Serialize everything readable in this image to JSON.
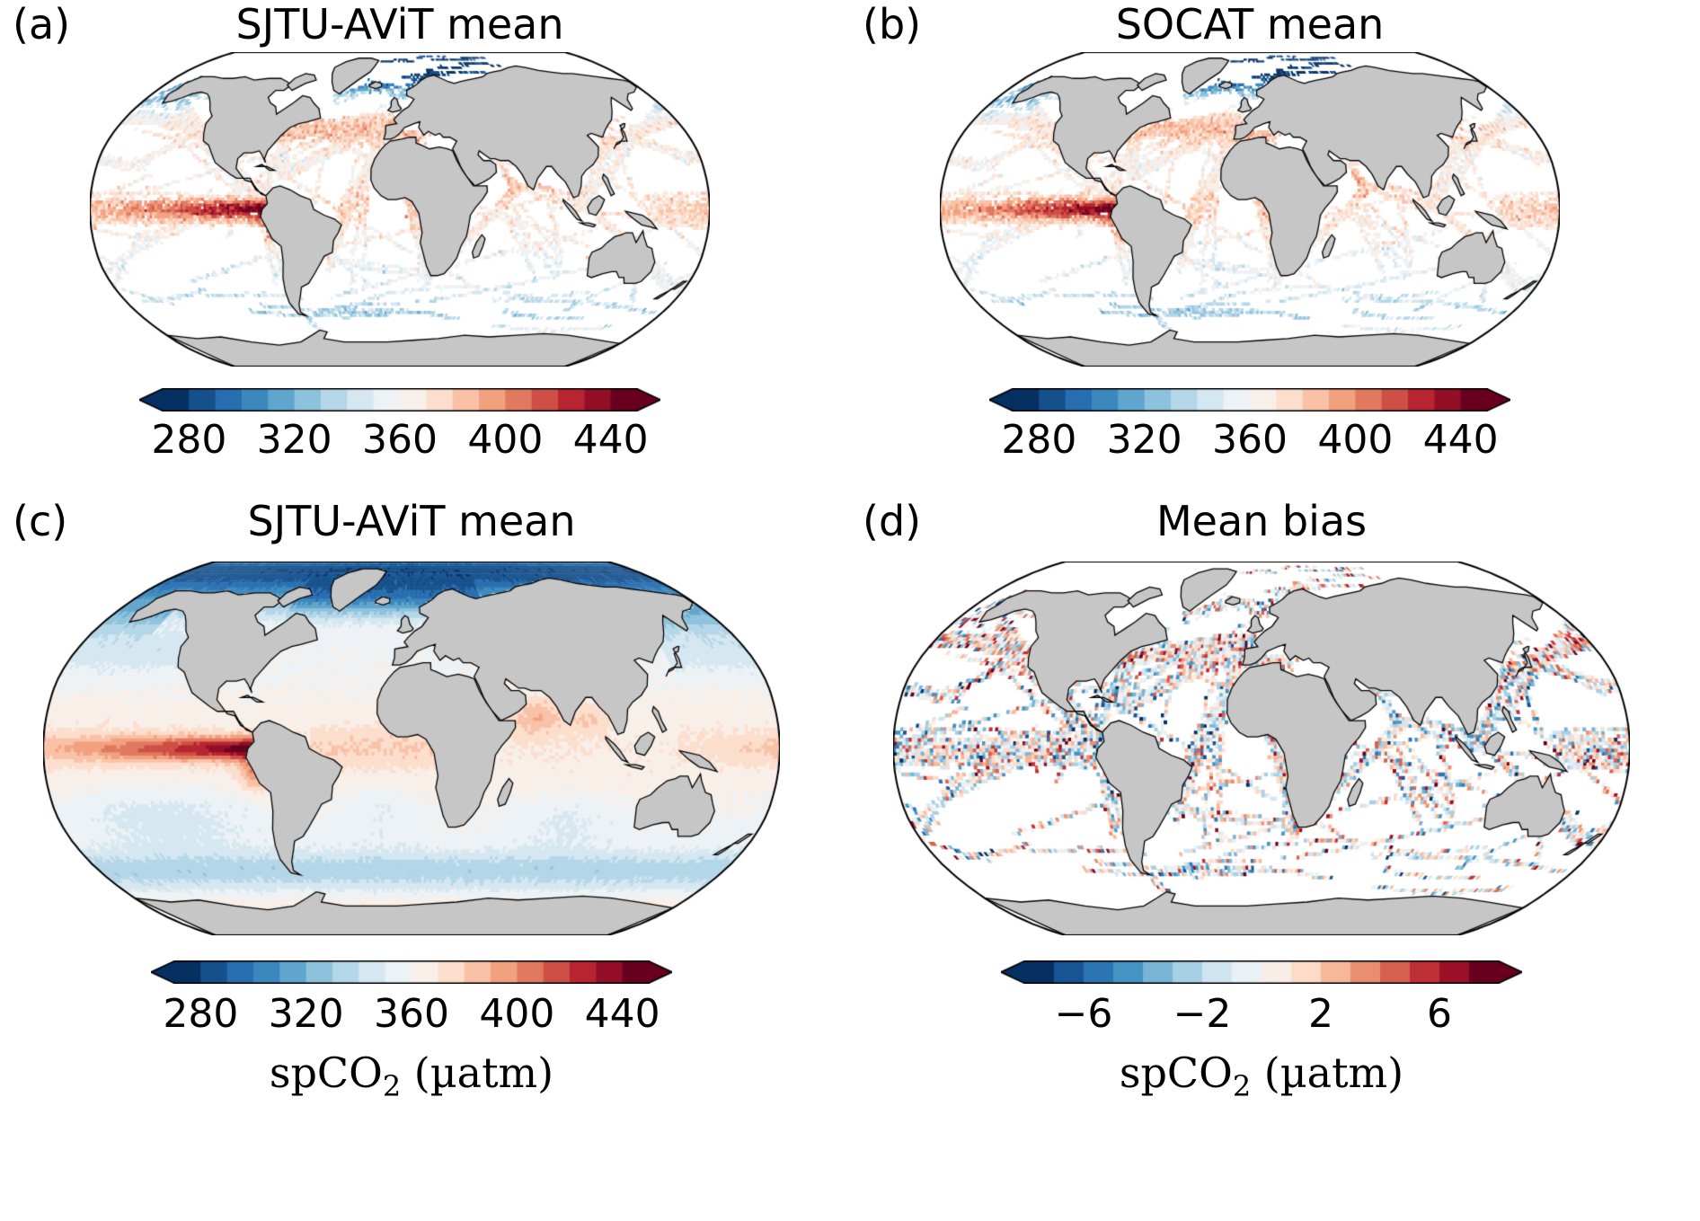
{
  "figure": {
    "panels": [
      {
        "id": "a",
        "label": "(a)",
        "title": "SJTU-AViT mean",
        "map_kind": "sampled-mean",
        "colorbar": {
          "vmin": 270,
          "vmax": 450,
          "n_segments": 18,
          "tick_values": [
            280,
            320,
            360,
            400,
            440
          ],
          "tick_labels": [
            "280",
            "320",
            "360",
            "400",
            "440"
          ]
        }
      },
      {
        "id": "b",
        "label": "(b)",
        "title": "SOCAT mean",
        "map_kind": "sampled-mean",
        "colorbar": {
          "vmin": 270,
          "vmax": 450,
          "n_segments": 18,
          "tick_values": [
            280,
            320,
            360,
            400,
            440
          ],
          "tick_labels": [
            "280",
            "320",
            "360",
            "400",
            "440"
          ]
        }
      },
      {
        "id": "c",
        "label": "(c)",
        "title": "SJTU-AViT mean",
        "map_kind": "full-mean",
        "colorbar": {
          "vmin": 270,
          "vmax": 450,
          "n_segments": 18,
          "tick_values": [
            280,
            320,
            360,
            400,
            440
          ],
          "tick_labels": [
            "280",
            "320",
            "360",
            "400",
            "440"
          ]
        },
        "xlabel": {
          "main": "spCO",
          "sub": "2",
          "unit": " (µatm)"
        }
      },
      {
        "id": "d",
        "label": "(d)",
        "title": "Mean bias",
        "map_kind": "bias",
        "colorbar": {
          "vmin": -8,
          "vmax": 8,
          "n_segments": 16,
          "tick_values": [
            -6,
            -2,
            2,
            6
          ],
          "tick_labels": [
            "−6",
            "−2",
            "2",
            "6"
          ]
        },
        "xlabel": {
          "main": "spCO",
          "sub": "2",
          "unit": " (µatm)"
        }
      }
    ]
  },
  "colors": {
    "background": "#ffffff",
    "land": "#c6c6c6",
    "coastline": "#000000",
    "text": "#000000",
    "colormap_rdbu_r": [
      "#053061",
      "#2166ac",
      "#4393c3",
      "#92c5de",
      "#d1e5f0",
      "#f7f7f7",
      "#fddbc7",
      "#f4a582",
      "#d6604d",
      "#b2182b",
      "#67001f"
    ]
  },
  "chart_data": [
    {
      "type": "heatmap",
      "panel": "a",
      "title": "SJTU-AViT mean",
      "projection": "Robinson world map",
      "variable": "spCO2",
      "units": "µatm",
      "sampling": "model mean sampled only in grid cells along SOCAT ship tracks (sparse criss-crossing lines, blank ocean elsewhere)",
      "colormap": "RdBu_r, discrete ~18 bins with pointed over/under extensions",
      "vmin": 270,
      "vmax": 450,
      "colorbar_ticks": [
        280,
        320,
        360,
        400,
        440
      ],
      "features": [
        {
          "region": "equatorial Pacific 160E-80W, 8S-5N",
          "value_range": [
            410,
            450
          ],
          "appearance": "dense dark-red band"
        },
        {
          "region": "North Atlantic and North Pacific shipping lanes 30-50N",
          "value_range": [
            370,
            410
          ],
          "appearance": "red/orange criss-crossing tracks"
        },
        {
          "region": "subpolar North Atlantic, Nordic Seas, Arctic",
          "value_range": [
            280,
            320
          ],
          "appearance": "dark blue tracks"
        },
        {
          "region": "Southern Hemisphere gyres 20-50S",
          "value_range": [
            330,
            365
          ],
          "appearance": "sparse pale blue and pink tracks"
        },
        {
          "region": "northern Indian Ocean / Arabian Sea",
          "value_range": [
            370,
            400
          ],
          "appearance": "scattered light red cells"
        }
      ]
    },
    {
      "type": "heatmap",
      "panel": "b",
      "title": "SOCAT mean",
      "projection": "Robinson world map",
      "variable": "spCO2",
      "units": "µatm",
      "sampling": "SOCAT observed mean on the same ship-track cells as panel (a); coverage and values nearly identical to panel (a)",
      "colormap": "RdBu_r, discrete ~18 bins with pointed over/under extensions",
      "vmin": 270,
      "vmax": 450,
      "colorbar_ticks": [
        280,
        320,
        360,
        400,
        440
      ],
      "features": [
        {
          "region": "equatorial Pacific",
          "value_range": [
            410,
            450
          ],
          "appearance": "dense dark-red band"
        },
        {
          "region": "northern mid-latitude shipping lanes",
          "value_range": [
            370,
            410
          ],
          "appearance": "red/orange tracks"
        },
        {
          "region": "high-latitude North Atlantic and Arctic",
          "value_range": [
            280,
            320
          ],
          "appearance": "dark blue tracks"
        },
        {
          "region": "Southern Hemisphere",
          "value_range": [
            330,
            365
          ],
          "appearance": "sparse pale tracks"
        }
      ]
    },
    {
      "type": "heatmap",
      "panel": "c",
      "title": "SJTU-AViT mean",
      "projection": "Robinson world map",
      "variable": "spCO2",
      "units": "µatm",
      "sampling": "complete reconstructed mean field over all ocean grid cells (smooth)",
      "colormap": "RdBu_r, discrete ~18 bins with pointed over/under extensions",
      "vmin": 270,
      "vmax": 450,
      "colorbar_ticks": [
        280,
        320,
        360,
        400,
        440
      ],
      "features": [
        {
          "region": "equatorial Pacific cold tongue widening toward South America",
          "value_range": [
            420,
            450
          ],
          "appearance": "smooth dark-red tongue"
        },
        {
          "region": "Arctic Ocean and subpolar North Atlantic",
          "value_range": [
            280,
            330
          ],
          "appearance": "blue to dark blue"
        },
        {
          "region": "subtropical gyres",
          "value_range": [
            340,
            360
          ],
          "appearance": "pale blue"
        },
        {
          "region": "Arabian Sea and Bay of Bengal",
          "value_range": [
            375,
            395
          ],
          "appearance": "light red"
        },
        {
          "region": "Southern Ocean 45-60S",
          "value_range": [
            335,
            355
          ],
          "appearance": "light blue band"
        },
        {
          "region": "tropical Atlantic and Indian Ocean",
          "value_range": [
            365,
            380
          ],
          "appearance": "pale pink"
        }
      ]
    },
    {
      "type": "heatmap",
      "panel": "d",
      "title": "Mean bias",
      "projection": "Robinson world map",
      "variable": "spCO2 bias (SJTU-AViT minus SOCAT)",
      "units": "µatm",
      "sampling": "same SOCAT ship-track cells as panels (a) and (b)",
      "colormap": "RdBu_r, discrete ~16 bins with pointed over/under extensions",
      "vmin": -8,
      "vmax": 8,
      "colorbar_ticks": [
        -6,
        -2,
        2,
        6
      ],
      "features": [
        {
          "region": "global ship tracks",
          "value_range": [
            -4,
            4
          ],
          "appearance": "fine speckled mix of small positive (red) and negative (blue) biases"
        },
        {
          "region": "northern mid-latitude Pacific and Atlantic",
          "value_range": [
            0,
            4
          ],
          "appearance": "slightly red-dominated speckle"
        },
        {
          "region": "tropical band 5-25N Pacific",
          "value_range": [
            -4,
            0
          ],
          "appearance": "slightly blue-dominated speckle"
        },
        {
          "region": "scattered single cells",
          "value_range": [
            -8,
            8
          ],
          "appearance": "occasional saturated outliers"
        }
      ]
    }
  ]
}
